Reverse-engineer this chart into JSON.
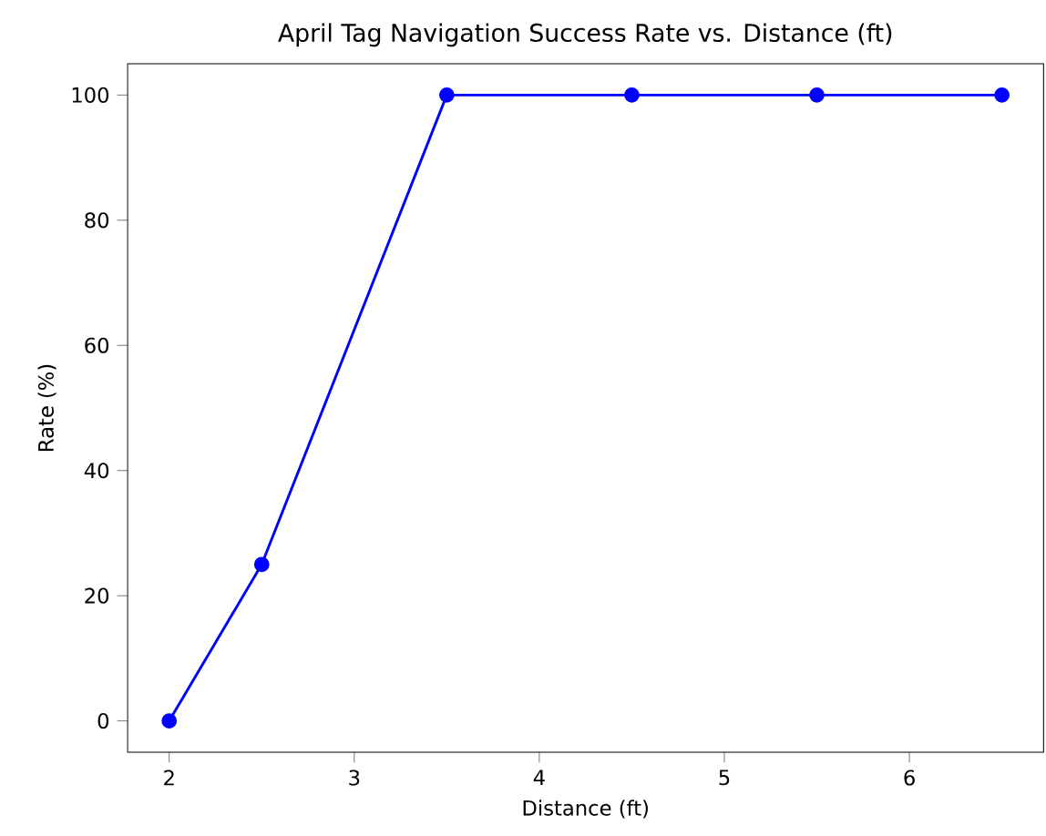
{
  "chart_data": {
    "type": "line",
    "title": "April Tag Navigation Success Rate vs. Distance (ft)",
    "xlabel": "Distance (ft)",
    "ylabel": "Rate (%)",
    "x": [
      2,
      2.5,
      3.5,
      4.5,
      5.5,
      6.5
    ],
    "series": [
      {
        "color": "#0000ff",
        "values": [
          0,
          25,
          100,
          100,
          100,
          100
        ]
      }
    ],
    "xlim": [
      1.775,
      6.725
    ],
    "ylim": [
      -5,
      105
    ],
    "xticks": [
      2,
      3,
      4,
      5,
      6
    ],
    "yticks": [
      0,
      20,
      40,
      60,
      80,
      100
    ],
    "marker": "circle",
    "line_style": "solid"
  }
}
